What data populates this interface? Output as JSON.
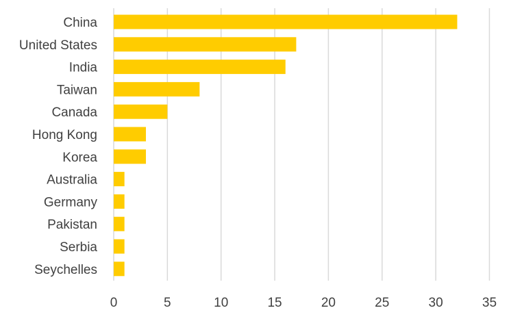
{
  "chart_data": {
    "type": "bar",
    "orientation": "horizontal",
    "title": "",
    "xlabel": "",
    "ylabel": "",
    "categories": [
      "China",
      "United States",
      "India",
      "Taiwan",
      "Canada",
      "Hong Kong",
      "Korea",
      "Australia",
      "Germany",
      "Pakistan",
      "Serbia",
      "Seychelles"
    ],
    "values": [
      32,
      17,
      16,
      8,
      5,
      3,
      3,
      1,
      1,
      1,
      1,
      1
    ],
    "xlim": [
      0,
      35
    ],
    "x_ticks": [
      0,
      5,
      10,
      15,
      20,
      25,
      30,
      35
    ],
    "grid": "vertical",
    "legend": "none",
    "bar_color": "#FFCC00",
    "grid_color": "#D9D9D9",
    "label_color": "#404040"
  }
}
